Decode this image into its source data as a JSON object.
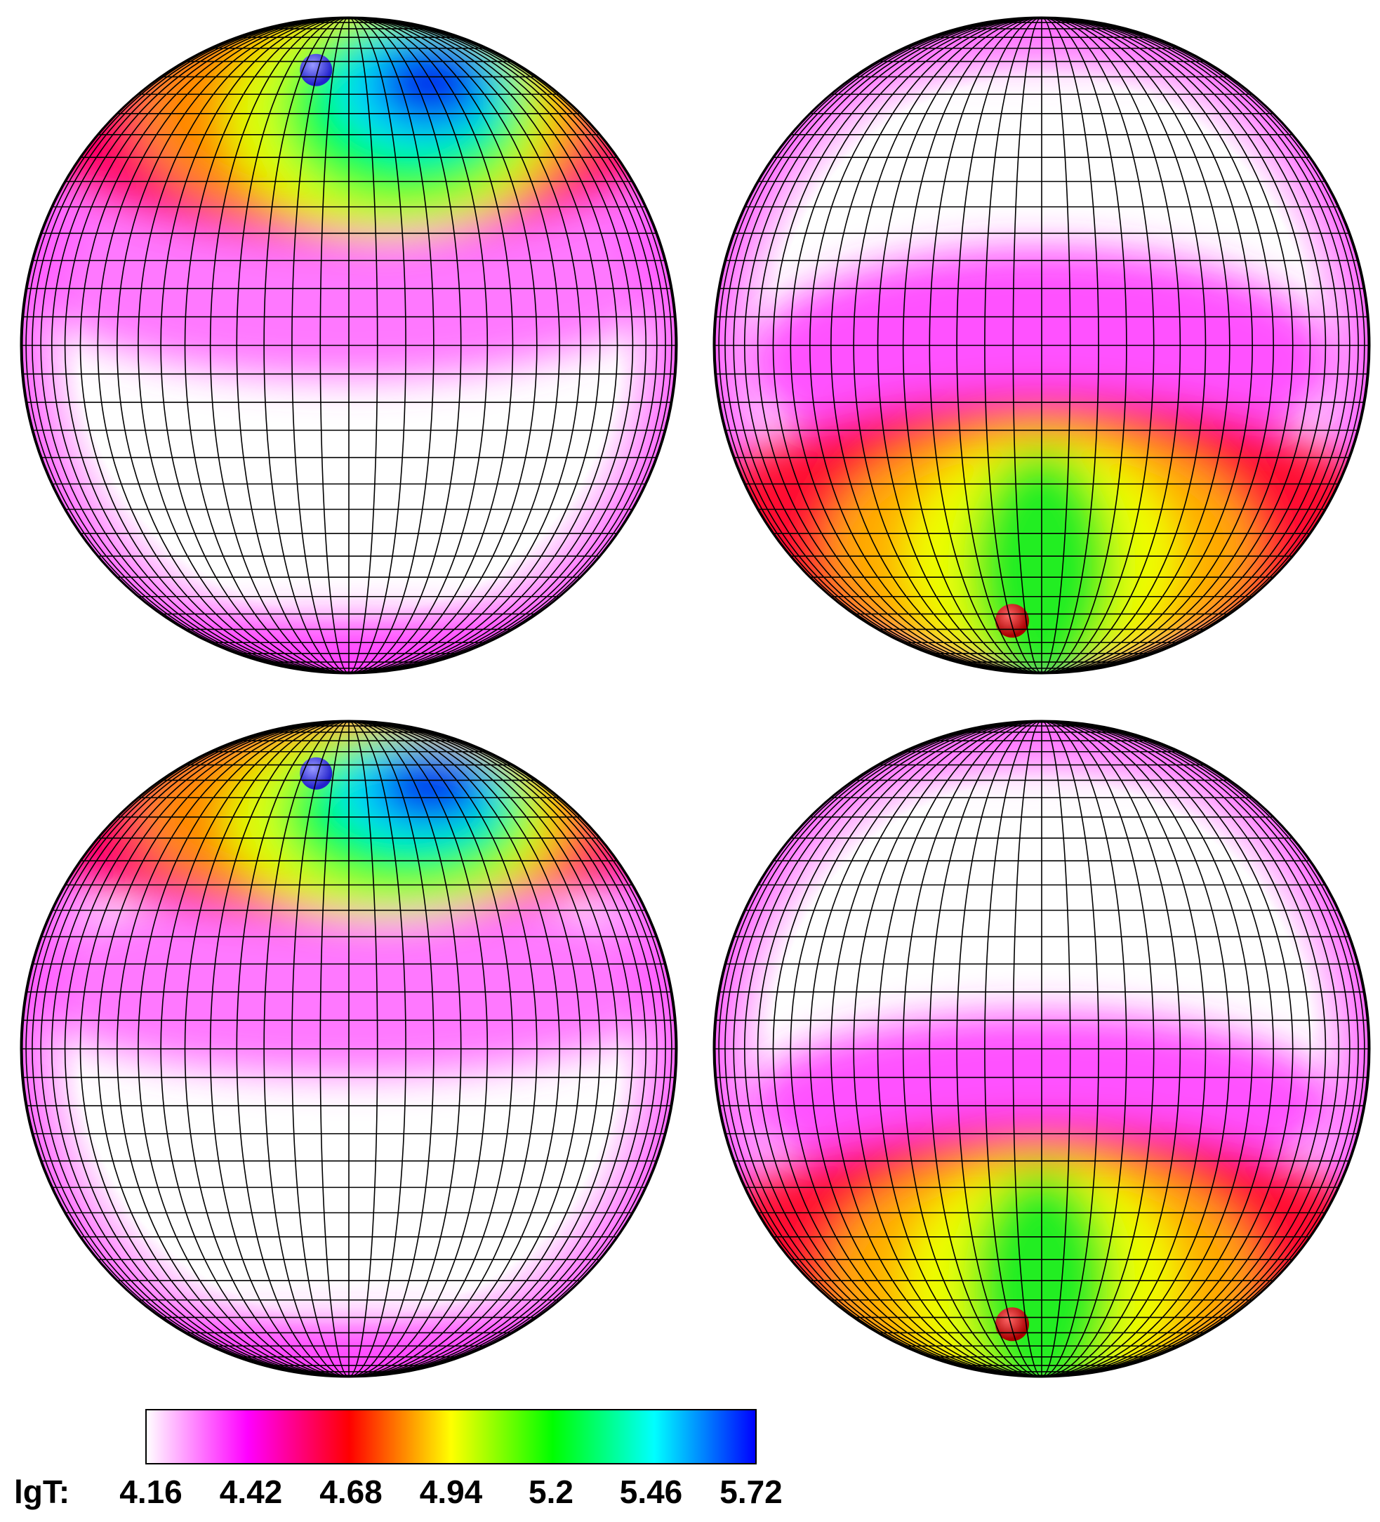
{
  "colorbar": {
    "label": "lgT:",
    "lim": [
      4.16,
      5.72
    ],
    "ticks": [
      4.16,
      4.42,
      4.68,
      4.94,
      5.2,
      5.46,
      5.72
    ],
    "colormap": [
      "#ffffff",
      "#ff00ff",
      "#ff0000",
      "#ffff00",
      "#00ff00",
      "#00ffff",
      "#0000ff"
    ]
  }
}
